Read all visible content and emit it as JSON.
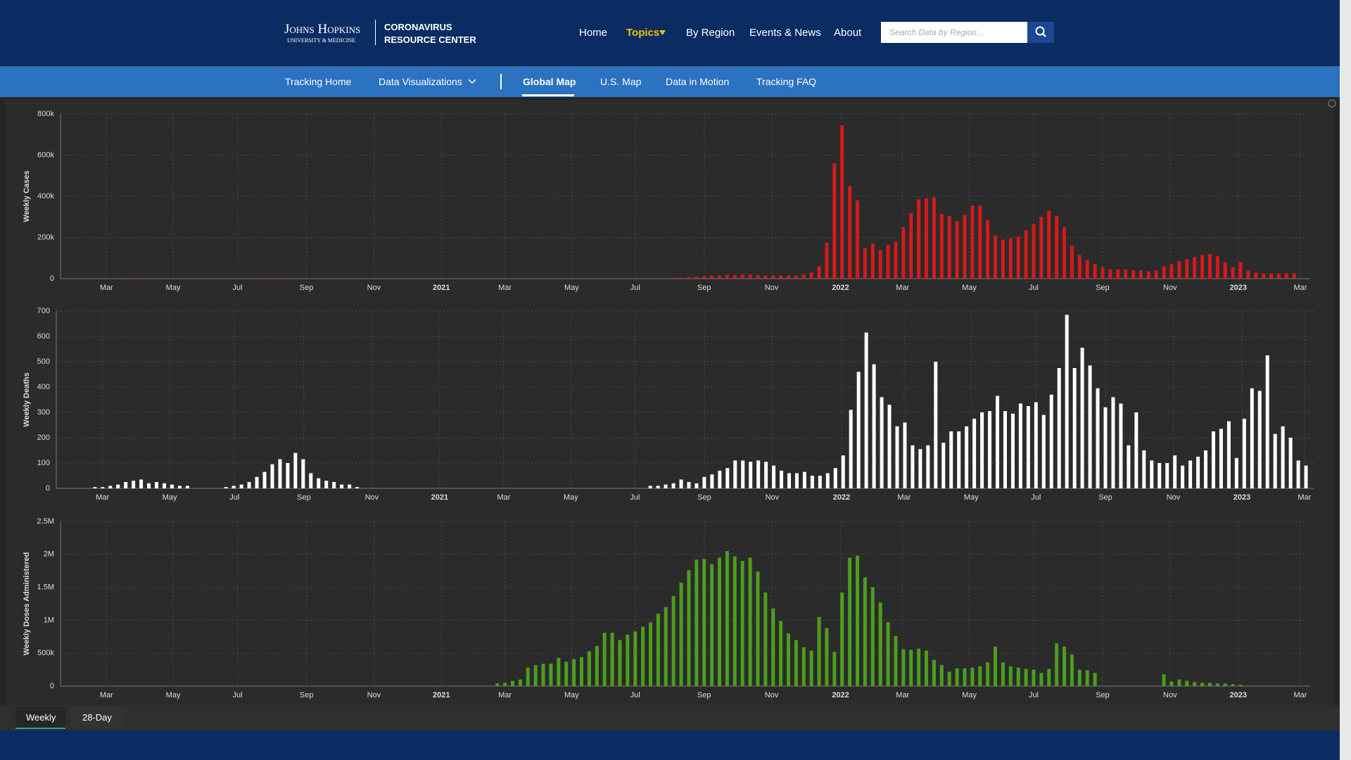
{
  "header": {
    "logo_top": "Johns Hopkins",
    "logo_bottom": "UNIVERSITY & MEDICINE",
    "crc_line1": "CORONAVIRUS",
    "crc_line2": "RESOURCE CENTER",
    "nav": [
      "Home",
      "Topics",
      "By Region",
      "Events & News",
      "About"
    ],
    "search_placeholder": "Search Data by Region..."
  },
  "subnav": [
    "Tracking Home",
    "Data Visualizations",
    "Global Map",
    "U.S. Map",
    "Data in Motion",
    "Tracking FAQ"
  ],
  "tabs": [
    "Weekly",
    "28-Day"
  ],
  "chart_data": [
    {
      "type": "bar",
      "y_label": "Weekly Cases",
      "color": "#d41a1a",
      "grid": true,
      "xlim": [
        0,
        163
      ],
      "xticks": [
        {
          "value": 6,
          "label": "Mar"
        },
        {
          "value": 14.7,
          "label": "May"
        },
        {
          "value": 23.1,
          "label": "Jul"
        },
        {
          "value": 32.1,
          "label": "Sep"
        },
        {
          "value": 40.9,
          "label": "Nov"
        },
        {
          "value": 49.7,
          "label": "2021"
        },
        {
          "value": 58,
          "label": "Mar"
        },
        {
          "value": 66.7,
          "label": "May"
        },
        {
          "value": 75,
          "label": "Jul"
        },
        {
          "value": 84,
          "label": "Sep"
        },
        {
          "value": 92.8,
          "label": "Nov"
        },
        {
          "value": 101.8,
          "label": "2022"
        },
        {
          "value": 109.9,
          "label": "Mar"
        },
        {
          "value": 118.6,
          "label": "May"
        },
        {
          "value": 127,
          "label": "Jul"
        },
        {
          "value": 136,
          "label": "Sep"
        },
        {
          "value": 144.8,
          "label": "Nov"
        },
        {
          "value": 153.7,
          "label": "2023"
        },
        {
          "value": 161.8,
          "label": "Mar"
        }
      ],
      "ylim": [
        0,
        800000
      ],
      "yticks": [
        0,
        {
          "value": 200000,
          "label": "200k"
        },
        {
          "value": 400000,
          "label": "400k"
        },
        {
          "value": 600000,
          "label": "600k"
        },
        {
          "value": 800000,
          "label": "800k"
        }
      ],
      "x": [
        9,
        10,
        25,
        26,
        27,
        28,
        29,
        80,
        81,
        82,
        83,
        84,
        85,
        86,
        87,
        88,
        89,
        90,
        91,
        92,
        93,
        94,
        95,
        96,
        97,
        98,
        99,
        100,
        101,
        102,
        103,
        104,
        105,
        106,
        107,
        108,
        109,
        110,
        111,
        112,
        113,
        114,
        115,
        116,
        117,
        118,
        119,
        120,
        121,
        122,
        123,
        124,
        125,
        126,
        127,
        128,
        129,
        130,
        131,
        132,
        133,
        134,
        135,
        136,
        137,
        138,
        139,
        140,
        141,
        142,
        143,
        144,
        145,
        146,
        147,
        148,
        149,
        150,
        151,
        152,
        153,
        154,
        155,
        156,
        157,
        158,
        159,
        160,
        161
      ],
      "values": [
        3000,
        3000,
        3000,
        3000,
        3000,
        3000,
        3000,
        5000,
        5000,
        8000,
        10000,
        12000,
        15000,
        15000,
        18000,
        18000,
        20000,
        20000,
        18000,
        15000,
        15000,
        15000,
        15000,
        15000,
        20000,
        30000,
        60000,
        175000,
        560000,
        745000,
        450000,
        380000,
        150000,
        170000,
        140000,
        165000,
        180000,
        250000,
        320000,
        385000,
        390000,
        395000,
        315000,
        305000,
        280000,
        310000,
        355000,
        355000,
        285000,
        210000,
        190000,
        195000,
        205000,
        235000,
        265000,
        300000,
        330000,
        305000,
        250000,
        160000,
        115000,
        90000,
        70000,
        55000,
        45000,
        45000,
        45000,
        40000,
        40000,
        35000,
        40000,
        60000,
        70000,
        85000,
        95000,
        105000,
        115000,
        120000,
        110000,
        80000,
        55000,
        80000,
        40000,
        30000,
        25000,
        25000,
        25000,
        25000,
        25000
      ]
    },
    {
      "type": "bar",
      "y_label": "Weekly Deaths",
      "color": "#ffffff",
      "grid": true,
      "xlim": [
        0,
        163
      ],
      "xticks": [
        {
          "value": 6,
          "label": "Mar"
        },
        {
          "value": 14.7,
          "label": "May"
        },
        {
          "value": 23.1,
          "label": "Jul"
        },
        {
          "value": 32.1,
          "label": "Sep"
        },
        {
          "value": 40.9,
          "label": "Nov"
        },
        {
          "value": 49.7,
          "label": "2021"
        },
        {
          "value": 58,
          "label": "Mar"
        },
        {
          "value": 66.7,
          "label": "May"
        },
        {
          "value": 75,
          "label": "Jul"
        },
        {
          "value": 84,
          "label": "Sep"
        },
        {
          "value": 92.8,
          "label": "Nov"
        },
        {
          "value": 101.8,
          "label": "2022"
        },
        {
          "value": 109.9,
          "label": "Mar"
        },
        {
          "value": 118.6,
          "label": "May"
        },
        {
          "value": 127,
          "label": "Jul"
        },
        {
          "value": 136,
          "label": "Sep"
        },
        {
          "value": 144.8,
          "label": "Nov"
        },
        {
          "value": 153.7,
          "label": "2023"
        },
        {
          "value": 161.8,
          "label": "Mar"
        }
      ],
      "ylim": [
        0,
        700
      ],
      "yticks": [
        0,
        100,
        200,
        300,
        400,
        500,
        600,
        700
      ],
      "x": [
        5,
        6,
        7,
        8,
        9,
        10,
        11,
        12,
        13,
        14,
        15,
        16,
        17,
        22,
        23,
        24,
        25,
        26,
        27,
        28,
        29,
        30,
        31,
        32,
        33,
        34,
        35,
        36,
        37,
        38,
        39,
        77,
        78,
        79,
        80,
        81,
        82,
        83,
        84,
        85,
        86,
        87,
        88,
        89,
        90,
        91,
        92,
        93,
        94,
        95,
        96,
        97,
        98,
        99,
        100,
        101,
        102,
        103,
        104,
        105,
        106,
        107,
        108,
        109,
        110,
        111,
        112,
        113,
        114,
        115,
        116,
        117,
        118,
        119,
        120,
        121,
        122,
        123,
        124,
        125,
        126,
        127,
        128,
        129,
        130,
        131,
        132,
        133,
        134,
        135,
        136,
        137,
        138,
        139,
        140,
        141,
        142,
        143,
        144,
        145,
        146,
        147,
        148,
        149,
        150,
        151,
        152,
        153,
        154,
        155,
        156,
        157,
        158,
        159,
        160,
        161,
        162
      ],
      "values": [
        5,
        5,
        10,
        15,
        25,
        30,
        35,
        20,
        25,
        20,
        15,
        10,
        10,
        5,
        10,
        15,
        25,
        45,
        65,
        95,
        115,
        100,
        140,
        115,
        60,
        40,
        30,
        25,
        15,
        15,
        5,
        10,
        10,
        15,
        20,
        35,
        25,
        20,
        45,
        55,
        70,
        80,
        110,
        110,
        105,
        110,
        105,
        90,
        70,
        60,
        60,
        65,
        50,
        50,
        60,
        80,
        130,
        310,
        460,
        615,
        490,
        360,
        330,
        245,
        260,
        170,
        155,
        170,
        500,
        180,
        225,
        225,
        245,
        275,
        300,
        305,
        365,
        305,
        295,
        335,
        325,
        340,
        290,
        370,
        475,
        685,
        475,
        555,
        485,
        395,
        320,
        360,
        335,
        170,
        300,
        150,
        110,
        100,
        100,
        130,
        90,
        110,
        125,
        150,
        225,
        235,
        265,
        120,
        275,
        395,
        385,
        525,
        215,
        245,
        200,
        110,
        90
      ]
    },
    {
      "type": "bar",
      "y_label": "Weekly Doses Administered",
      "color": "#4c9e1c",
      "grid": true,
      "xlim": [
        0,
        163
      ],
      "xticks": [
        {
          "value": 6,
          "label": "Mar"
        },
        {
          "value": 14.7,
          "label": "May"
        },
        {
          "value": 23.1,
          "label": "Jul"
        },
        {
          "value": 32.1,
          "label": "Sep"
        },
        {
          "value": 40.9,
          "label": "Nov"
        },
        {
          "value": 49.7,
          "label": "2021"
        },
        {
          "value": 58,
          "label": "Mar"
        },
        {
          "value": 66.7,
          "label": "May"
        },
        {
          "value": 75,
          "label": "Jul"
        },
        {
          "value": 84,
          "label": "Sep"
        },
        {
          "value": 92.8,
          "label": "Nov"
        },
        {
          "value": 101.8,
          "label": "2022"
        },
        {
          "value": 109.9,
          "label": "Mar"
        },
        {
          "value": 118.6,
          "label": "May"
        },
        {
          "value": 127,
          "label": "Jul"
        },
        {
          "value": 136,
          "label": "Sep"
        },
        {
          "value": 144.8,
          "label": "Nov"
        },
        {
          "value": 153.7,
          "label": "2023"
        },
        {
          "value": 161.8,
          "label": "Mar"
        }
      ],
      "ylim": [
        0,
        2500000
      ],
      "yticks": [
        0,
        {
          "value": 500000,
          "label": "500k"
        },
        {
          "value": 1000000,
          "label": "1M"
        },
        {
          "value": 1500000,
          "label": "1.5M"
        },
        {
          "value": 2000000,
          "label": "2M"
        },
        {
          "value": 2500000,
          "label": "2.5M"
        }
      ],
      "x": [
        57,
        58,
        59,
        60,
        61,
        62,
        63,
        64,
        65,
        66,
        67,
        68,
        69,
        70,
        71,
        72,
        73,
        74,
        75,
        76,
        77,
        78,
        79,
        80,
        81,
        82,
        83,
        84,
        85,
        86,
        87,
        88,
        89,
        90,
        91,
        92,
        93,
        94,
        95,
        96,
        97,
        98,
        99,
        100,
        101,
        102,
        103,
        104,
        105,
        106,
        107,
        108,
        109,
        110,
        111,
        112,
        113,
        114,
        115,
        116,
        117,
        118,
        119,
        120,
        121,
        122,
        123,
        124,
        125,
        126,
        127,
        128,
        129,
        130,
        131,
        132,
        133,
        134,
        135,
        144,
        145,
        146,
        147,
        148,
        149,
        150,
        151,
        152,
        153,
        154
      ],
      "values": [
        40000,
        50000,
        80000,
        100000,
        280000,
        320000,
        340000,
        340000,
        430000,
        370000,
        410000,
        440000,
        530000,
        610000,
        810000,
        810000,
        700000,
        780000,
        830000,
        900000,
        970000,
        1100000,
        1200000,
        1370000,
        1570000,
        1760000,
        1920000,
        1930000,
        1850000,
        1950000,
        2050000,
        1970000,
        1900000,
        1950000,
        1740000,
        1420000,
        1180000,
        990000,
        800000,
        700000,
        590000,
        540000,
        1050000,
        880000,
        520000,
        1420000,
        1950000,
        1980000,
        1650000,
        1500000,
        1270000,
        970000,
        760000,
        560000,
        550000,
        570000,
        540000,
        400000,
        320000,
        220000,
        270000,
        270000,
        280000,
        300000,
        360000,
        600000,
        360000,
        300000,
        280000,
        260000,
        250000,
        200000,
        260000,
        650000,
        600000,
        480000,
        250000,
        240000,
        200000,
        180000,
        70000,
        100000,
        80000,
        60000,
        50000,
        50000,
        40000,
        40000,
        30000,
        20000
      ]
    }
  ]
}
